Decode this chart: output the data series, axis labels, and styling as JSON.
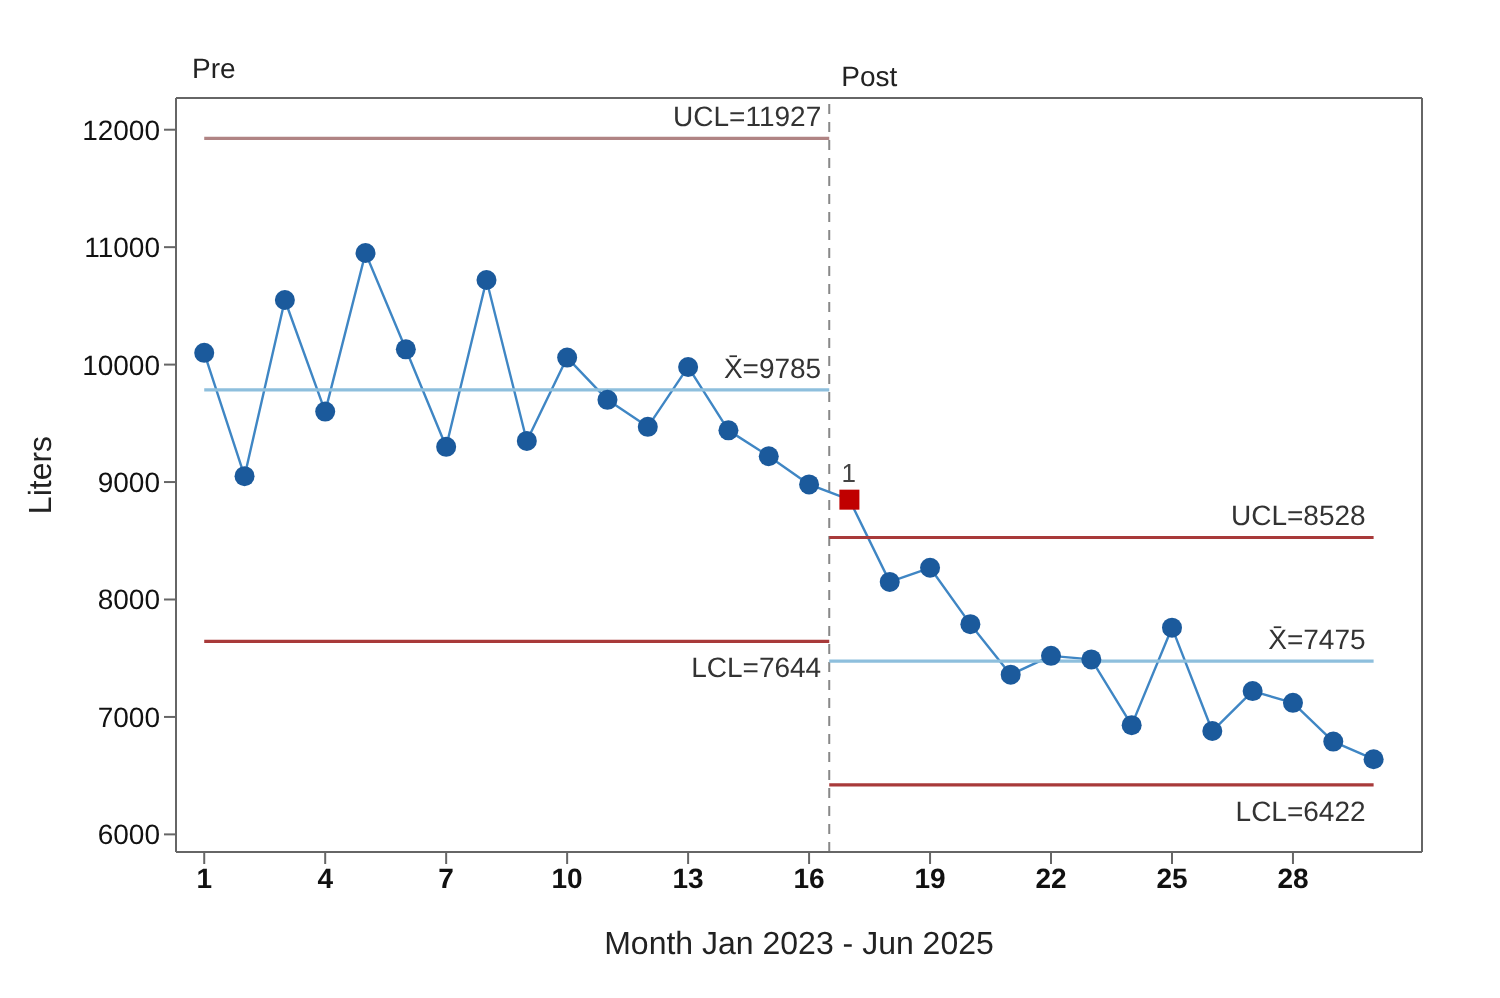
{
  "chart_data": {
    "type": "line",
    "xlabel": "Month Jan 2023 - Jun 2025",
    "ylabel": "Liters",
    "xlim": [
      0.3,
      31.2
    ],
    "xticks": [
      1,
      4,
      7,
      10,
      13,
      16,
      19,
      22,
      25,
      28
    ],
    "ylim": [
      5850,
      12270
    ],
    "yticks": [
      6000,
      7000,
      8000,
      9000,
      10000,
      11000,
      12000
    ],
    "grid": false,
    "legend": false,
    "series": [
      {
        "color": "#3f86c4",
        "marker": "none",
        "x": [
          1,
          2,
          3,
          4,
          5,
          6,
          7,
          8,
          9,
          10,
          11,
          12,
          13,
          14,
          15,
          16,
          17,
          18,
          19,
          20,
          21,
          22,
          23,
          24,
          25,
          26,
          27,
          28,
          29,
          30
        ],
        "values": [
          10100,
          9050,
          10550,
          9600,
          10950,
          10130,
          9300,
          10720,
          9350,
          10060,
          9700,
          9470,
          9980,
          9440,
          9220,
          8980,
          8850,
          8150,
          8270,
          7790,
          7360,
          7520,
          7490,
          6930,
          7760,
          6880,
          7220,
          7120,
          6790,
          6640
        ]
      },
      {
        "type": "scatter",
        "color": "#1b5a9c",
        "marker": "circle",
        "x": [
          1,
          2,
          3,
          4,
          5,
          6,
          7,
          8,
          9,
          10,
          11,
          12,
          13,
          14,
          15,
          16,
          18,
          19,
          20,
          21,
          22,
          23,
          24,
          25,
          26,
          27,
          28,
          29,
          30
        ],
        "values": [
          10100,
          9050,
          10550,
          9600,
          10950,
          10130,
          9300,
          10720,
          9350,
          10060,
          9700,
          9470,
          9980,
          9440,
          9220,
          8980,
          8150,
          8270,
          7790,
          7360,
          7520,
          7490,
          6930,
          7760,
          6880,
          7220,
          7120,
          6790,
          6640
        ]
      },
      {
        "type": "scatter",
        "color": "#c00000",
        "marker": "square",
        "x": [
          17
        ],
        "values": [
          8850
        ]
      },
      {
        "name": "UCL=11927",
        "color": "#b08484",
        "marker": "none",
        "x": [
          1,
          16.5
        ],
        "values": [
          11927,
          11927
        ]
      },
      {
        "name": "X̄=9785",
        "color": "#8ebfdd",
        "marker": "none",
        "x": [
          1,
          16.5
        ],
        "values": [
          9785,
          9785
        ]
      },
      {
        "name": "LCL=7644",
        "color": "#a83a3a",
        "marker": "none",
        "x": [
          1,
          16.5
        ],
        "values": [
          7644,
          7644
        ]
      },
      {
        "name": "UCL=8528",
        "color": "#a83a3a",
        "marker": "none",
        "x": [
          16.5,
          30
        ],
        "values": [
          8528,
          8528
        ]
      },
      {
        "name": "X̄=7475",
        "color": "#8ebfdd",
        "marker": "none",
        "x": [
          16.5,
          30
        ],
        "values": [
          7475,
          7475
        ]
      },
      {
        "name": "LCL=6422",
        "color": "#a83a3a",
        "marker": "none",
        "x": [
          16.5,
          30
        ],
        "values": [
          6422,
          6422
        ]
      }
    ],
    "ref_lines": [
      {
        "axis": "x",
        "value": 16.5,
        "label": "Post",
        "color": "#888888",
        "line_style": "dashed"
      }
    ],
    "annotations": [
      "Pre",
      {
        "text": "1",
        "x": 17,
        "y": 8850
      }
    ]
  }
}
